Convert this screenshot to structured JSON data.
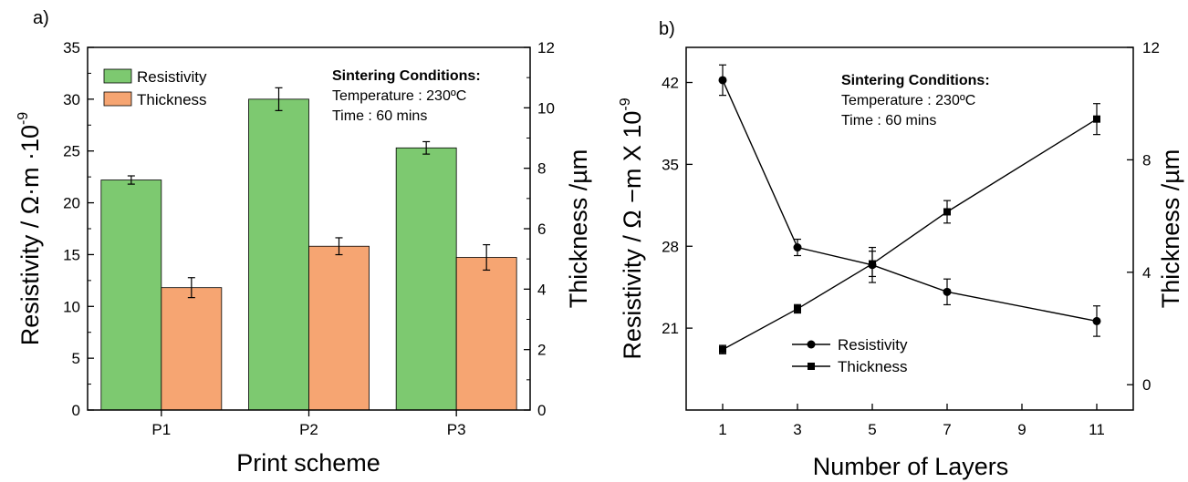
{
  "chart_data": [
    {
      "panel_label": "a)",
      "type": "bar",
      "categories": [
        "P1",
        "P2",
        "P3"
      ],
      "xlabel": "Print scheme",
      "ylabel_left": "Resistivity  / Ω·m ·10",
      "ylabel_left_exponent": "-9",
      "ylabel_right": "Thickness /µm",
      "ylim_left": [
        0,
        35
      ],
      "ylim_right": [
        0,
        12
      ],
      "yticks_left": [
        "0",
        "5",
        "10",
        "15",
        "20",
        "25",
        "30",
        "35"
      ],
      "yticks_right": [
        "0",
        "2",
        "4",
        "6",
        "8",
        "10",
        "12"
      ],
      "legend_position": "top-left",
      "series": [
        {
          "name": "Resistivity",
          "axis": "left",
          "color": "#7dc970",
          "values": [
            22.2,
            30.0,
            25.3
          ],
          "errors": [
            0.4,
            1.1,
            0.6
          ]
        },
        {
          "name": "Thickness",
          "axis": "right",
          "color": "#f6a572",
          "values": [
            4.05,
            5.42,
            5.05
          ],
          "errors": [
            0.33,
            0.28,
            0.42
          ]
        }
      ],
      "annotation": {
        "title": "Sintering Conditions:",
        "lines": [
          "Temperature : 230ºC",
          "Time : 60 mins"
        ]
      }
    },
    {
      "panel_label": "b)",
      "type": "line",
      "xlabel": "Number of Layers",
      "ylabel_left": "Resistivity  / Ω −m X 10",
      "ylabel_left_exponent": "-9",
      "ylabel_right": "Thickness /µm",
      "x": [
        1,
        3,
        5,
        7,
        11
      ],
      "x_category_labels": [
        "1",
        "3",
        "5",
        "7",
        "9",
        "11"
      ],
      "ylim_left": [
        14,
        45
      ],
      "ylim_right": [
        -0.9,
        12
      ],
      "yticks_left": [
        "21",
        "28",
        "35",
        "42"
      ],
      "yticks_right": [
        "0",
        "4",
        "8",
        "12"
      ],
      "legend_position": "bottom-left",
      "series": [
        {
          "name": "Resistivity",
          "axis": "left",
          "marker": "circle",
          "y": [
            42.2,
            27.9,
            26.4,
            24.1,
            21.6
          ],
          "errors": [
            1.3,
            0.7,
            1.5,
            1.1,
            1.3
          ]
        },
        {
          "name": "Thickness",
          "axis": "right",
          "marker": "square",
          "y": [
            1.25,
            2.7,
            4.3,
            6.15,
            9.45
          ],
          "errors": [
            0.15,
            0.15,
            0.45,
            0.4,
            0.55
          ]
        }
      ],
      "annotation": {
        "title": "Sintering Conditions:",
        "lines": [
          "Temperature : 230ºC",
          "Time : 60 mins"
        ]
      }
    }
  ]
}
